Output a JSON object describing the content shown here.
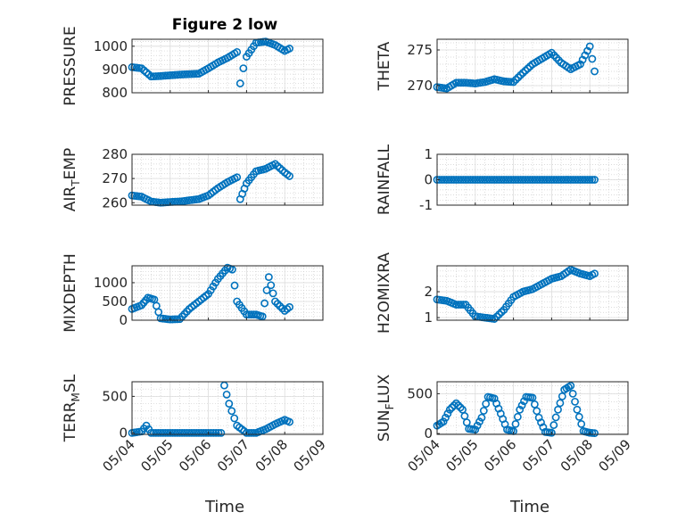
{
  "figure": {
    "title": "Figure 2 low",
    "xlabel": "Time",
    "x_ticks": [
      "05/04",
      "05/05",
      "05/06",
      "05/07",
      "05/08",
      "05/09"
    ],
    "marker_color": "#0072BD",
    "grid": "major and minor, dotted"
  },
  "chart_data": [
    {
      "type": "scatter",
      "title": "Figure 2 low",
      "ylabel": "PRESSURE",
      "ylabel_html": [
        "PRESSURE"
      ],
      "ylim": [
        800,
        1030
      ],
      "yticks": [
        800,
        900,
        1000
      ],
      "x": [
        "05/04 00:00",
        "05/04 06:00",
        "05/04 12:00",
        "05/04 18:00",
        "05/05 00:00",
        "05/05 06:00",
        "05/05 12:00",
        "05/05 18:00",
        "05/06 00:00",
        "05/06 06:00",
        "05/06 12:00",
        "05/06 18:00",
        "05/06 20:00",
        "05/06 22:00",
        "05/07 00:00",
        "05/07 06:00",
        "05/07 12:00",
        "05/07 18:00",
        "05/08 00:00",
        "05/08 03:00"
      ],
      "values": [
        910,
        905,
        870,
        872,
        875,
        878,
        880,
        882,
        905,
        930,
        950,
        975,
        840,
        905,
        955,
        1015,
        1020,
        1005,
        980,
        990
      ]
    },
    {
      "type": "scatter",
      "title": "",
      "ylabel": "THETA",
      "ylabel_html": [
        "THETA"
      ],
      "ylim": [
        269,
        276.5
      ],
      "yticks": [
        270,
        275
      ],
      "x": [
        "05/04 00:00",
        "05/04 06:00",
        "05/04 12:00",
        "05/04 18:00",
        "05/05 00:00",
        "05/05 06:00",
        "05/05 12:00",
        "05/05 18:00",
        "05/06 00:00",
        "05/06 06:00",
        "05/06 12:00",
        "05/06 18:00",
        "05/07 00:00",
        "05/07 06:00",
        "05/07 12:00",
        "05/07 18:00",
        "05/08 00:00",
        "05/08 03:00"
      ],
      "values": [
        269.8,
        269.6,
        270.4,
        270.4,
        270.3,
        270.5,
        270.9,
        270.6,
        270.5,
        271.8,
        273.0,
        273.8,
        274.6,
        273.2,
        272.3,
        273.0,
        275.5,
        272.0
      ]
    },
    {
      "type": "scatter",
      "title": "",
      "ylabel": "AIR_TEMP",
      "ylabel_html": [
        "AIR",
        "T",
        "EMP"
      ],
      "ylim": [
        259,
        280
      ],
      "yticks": [
        260,
        270,
        280
      ],
      "x": [
        "05/04 00:00",
        "05/04 06:00",
        "05/04 12:00",
        "05/04 18:00",
        "05/05 00:00",
        "05/05 06:00",
        "05/05 12:00",
        "05/05 18:00",
        "05/06 00:00",
        "05/06 06:00",
        "05/06 12:00",
        "05/06 18:00",
        "05/06 20:00",
        "05/07 00:00",
        "05/07 06:00",
        "05/07 12:00",
        "05/07 18:00",
        "05/08 00:00",
        "05/08 03:00"
      ],
      "values": [
        263,
        262.5,
        260.5,
        260,
        260.3,
        260.5,
        261,
        261.5,
        263,
        266,
        268.5,
        270.5,
        261.5,
        268,
        273,
        274,
        276,
        272.5,
        271
      ]
    },
    {
      "type": "scatter",
      "title": "",
      "ylabel": "RAINFALL",
      "ylabel_html": [
        "RAINFALL"
      ],
      "ylim": [
        -1,
        1
      ],
      "yticks": [
        -1,
        0,
        1
      ],
      "x": [
        "05/04 00:00",
        "05/04 12:00",
        "05/05 00:00",
        "05/05 12:00",
        "05/06 00:00",
        "05/06 12:00",
        "05/07 00:00",
        "05/07 12:00",
        "05/08 00:00",
        "05/08 03:00"
      ],
      "values": [
        0,
        0,
        0,
        0,
        0,
        0,
        0,
        0,
        0,
        0
      ]
    },
    {
      "type": "scatter",
      "title": "",
      "ylabel": "MIXDEPTH",
      "ylabel_html": [
        "MIXDEPTH"
      ],
      "ylim": [
        0,
        1450
      ],
      "yticks": [
        0,
        500,
        1000
      ],
      "x": [
        "05/04 00:00",
        "05/04 06:00",
        "05/04 10:00",
        "05/04 14:00",
        "05/04 18:00",
        "05/05 00:00",
        "05/05 06:00",
        "05/05 12:00",
        "05/05 18:00",
        "05/06 00:00",
        "05/06 06:00",
        "05/06 12:00",
        "05/06 15:00",
        "05/06 18:00",
        "05/07 00:00",
        "05/07 06:00",
        "05/07 10:00",
        "05/07 14:00",
        "05/07 18:00",
        "05/08 00:00",
        "05/08 03:00"
      ],
      "values": [
        300,
        400,
        600,
        550,
        50,
        20,
        30,
        300,
        500,
        700,
        1100,
        1400,
        1350,
        500,
        150,
        150,
        100,
        1150,
        500,
        250,
        350
      ]
    },
    {
      "type": "scatter",
      "title": "",
      "ylabel": "H2OMIXRA",
      "ylabel_html": [
        "H2OMIXRA"
      ],
      "ylim": [
        0.9,
        3
      ],
      "yticks": [
        1,
        2
      ],
      "x": [
        "05/04 00:00",
        "05/04 06:00",
        "05/04 12:00",
        "05/04 18:00",
        "05/05 00:00",
        "05/05 06:00",
        "05/05 12:00",
        "05/05 18:00",
        "05/06 00:00",
        "05/06 06:00",
        "05/06 12:00",
        "05/06 18:00",
        "05/07 00:00",
        "05/07 06:00",
        "05/07 12:00",
        "05/07 18:00",
        "05/08 00:00",
        "05/08 03:00"
      ],
      "values": [
        1.7,
        1.65,
        1.5,
        1.5,
        1.05,
        1.0,
        0.95,
        1.3,
        1.8,
        2.0,
        2.1,
        2.3,
        2.5,
        2.6,
        2.85,
        2.7,
        2.6,
        2.7
      ]
    },
    {
      "type": "scatter",
      "title": "",
      "ylabel": "TERR_MSL",
      "ylabel_html": [
        "TERR",
        "M",
        "SL"
      ],
      "ylim": [
        -20,
        700
      ],
      "yticks": [
        0,
        500
      ],
      "x": [
        "05/04 00:00",
        "05/04 06:00",
        "05/04 09:00",
        "05/04 12:00",
        "05/05 00:00",
        "05/05 12:00",
        "05/06 00:00",
        "05/06 08:00",
        "05/06 10:00",
        "05/06 13:00",
        "05/06 18:00",
        "05/07 00:00",
        "05/07 06:00",
        "05/07 12:00",
        "05/07 18:00",
        "05/08 00:00",
        "05/08 03:00"
      ],
      "values": [
        0,
        20,
        100,
        0,
        0,
        0,
        0,
        0,
        650,
        400,
        100,
        0,
        0,
        50,
        120,
        180,
        150
      ]
    },
    {
      "type": "scatter",
      "title": "",
      "ylabel": "SUN_FLUX",
      "ylabel_html": [
        "SUN",
        "F",
        "LUX"
      ],
      "ylim": [
        -10,
        650
      ],
      "yticks": [
        0,
        500
      ],
      "x": [
        "05/04 00:00",
        "05/04 04:00",
        "05/04 08:00",
        "05/04 12:00",
        "05/04 16:00",
        "05/04 20:00",
        "05/05 00:00",
        "05/05 04:00",
        "05/05 08:00",
        "05/05 12:00",
        "05/05 16:00",
        "05/05 20:00",
        "05/06 00:00",
        "05/06 04:00",
        "05/06 08:00",
        "05/06 12:00",
        "05/06 16:00",
        "05/06 20:00",
        "05/07 00:00",
        "05/07 04:00",
        "05/07 08:00",
        "05/07 12:00",
        "05/07 16:00",
        "05/07 20:00",
        "05/08 00:00",
        "05/08 03:00"
      ],
      "values": [
        100,
        150,
        300,
        380,
        300,
        60,
        50,
        200,
        460,
        440,
        250,
        50,
        30,
        300,
        460,
        450,
        200,
        20,
        10,
        300,
        550,
        600,
        300,
        30,
        10,
        5
      ]
    }
  ]
}
